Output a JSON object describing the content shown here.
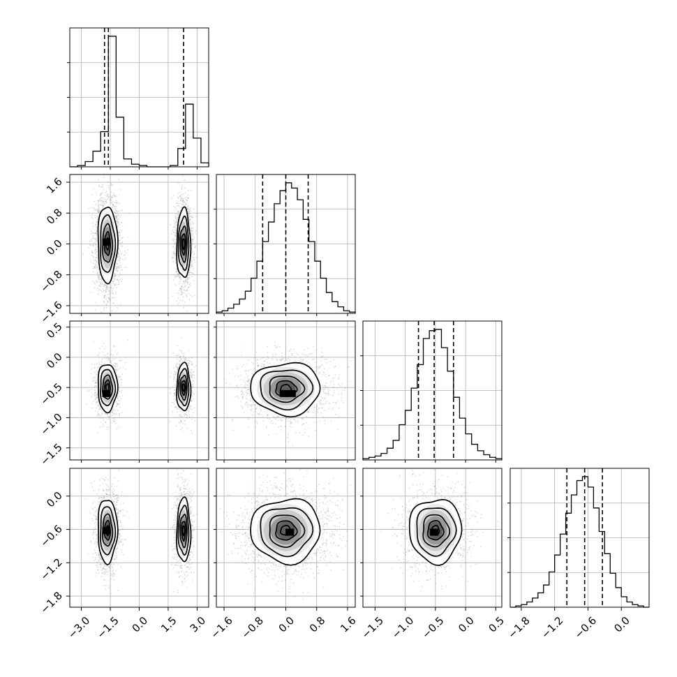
{
  "colors": {
    "line": "#000000",
    "grid": "#b0b0b0",
    "scatter": "#9a9a9a",
    "background": "#ffffff"
  },
  "chart_data": {
    "type": "corner",
    "grid": true,
    "n_params": 4,
    "params": [
      {
        "index": 0,
        "range": [
          -3.6,
          3.6
        ],
        "ticks": [
          -3.0,
          -1.5,
          0.0,
          1.5,
          3.0
        ],
        "tick_labels": [
          "−3.0",
          "−1.5",
          "0.0",
          "1.5",
          "3.0"
        ]
      },
      {
        "index": 1,
        "range": [
          -1.8,
          1.8
        ],
        "ticks": [
          -1.6,
          -0.8,
          0.0,
          0.8,
          1.6
        ],
        "tick_labels": [
          "−1.6",
          "−0.8",
          "0.0",
          "0.8",
          "1.6"
        ]
      },
      {
        "index": 2,
        "range": [
          -1.7,
          0.6
        ],
        "ticks": [
          -1.5,
          -1.0,
          -0.5,
          0.0,
          0.5
        ],
        "tick_labels": [
          "−1.5",
          "−1.0",
          "−0.5",
          "0.0",
          "0.5"
        ]
      },
      {
        "index": 3,
        "range": [
          -2.0,
          0.5
        ],
        "ticks": [
          -1.8,
          -1.2,
          -0.6,
          0.0
        ],
        "tick_labels": [
          "−1.8",
          "−1.2",
          "−0.6",
          "0.0"
        ]
      }
    ],
    "marginals": [
      {
        "param": 0,
        "edges": [
          -3.6,
          -3.2,
          -2.8,
          -2.4,
          -2.0,
          -1.6,
          -1.2,
          -0.8,
          -0.4,
          0.0,
          0.4,
          0.8,
          1.2,
          1.6,
          2.0,
          2.4,
          2.8,
          3.2,
          3.6
        ],
        "counts": [
          0,
          0.01,
          0.04,
          0.12,
          0.27,
          1.0,
          0.38,
          0.06,
          0.02,
          0.01,
          0,
          0,
          0,
          0.01,
          0.14,
          0.48,
          0.22,
          0.03
        ],
        "quantiles": [
          -1.8,
          -1.6,
          2.3
        ]
      },
      {
        "param": 1,
        "edges": [
          -1.8,
          -1.65,
          -1.5,
          -1.35,
          -1.2,
          -1.05,
          -0.9,
          -0.75,
          -0.6,
          -0.45,
          -0.3,
          -0.15,
          0.0,
          0.15,
          0.3,
          0.45,
          0.6,
          0.75,
          0.9,
          1.05,
          1.2,
          1.35,
          1.5,
          1.65,
          1.8
        ],
        "counts": [
          0.01,
          0.02,
          0.04,
          0.07,
          0.11,
          0.17,
          0.27,
          0.4,
          0.55,
          0.7,
          0.84,
          0.94,
          1.0,
          0.96,
          0.87,
          0.72,
          0.55,
          0.4,
          0.27,
          0.16,
          0.09,
          0.05,
          0.02,
          0.01
        ],
        "quantiles": [
          -0.6,
          0.0,
          0.58
        ]
      },
      {
        "param": 2,
        "edges": [
          -1.7,
          -1.6,
          -1.5,
          -1.4,
          -1.3,
          -1.2,
          -1.1,
          -1.0,
          -0.9,
          -0.8,
          -0.7,
          -0.6,
          -0.5,
          -0.4,
          -0.3,
          -0.2,
          -0.1,
          0.0,
          0.1,
          0.2,
          0.3,
          0.4,
          0.5,
          0.6
        ],
        "counts": [
          0.01,
          0.02,
          0.03,
          0.05,
          0.09,
          0.15,
          0.27,
          0.38,
          0.55,
          0.73,
          0.93,
          0.99,
          1.0,
          0.86,
          0.68,
          0.48,
          0.32,
          0.2,
          0.12,
          0.07,
          0.04,
          0.02,
          0.01
        ],
        "quantiles": [
          -0.78,
          -0.52,
          -0.2
        ]
      },
      {
        "param": 3,
        "edges": [
          -2.0,
          -1.9,
          -1.8,
          -1.7,
          -1.6,
          -1.5,
          -1.4,
          -1.3,
          -1.2,
          -1.1,
          -1.0,
          -0.9,
          -0.8,
          -0.7,
          -0.6,
          -0.5,
          -0.4,
          -0.3,
          -0.2,
          -0.1,
          0.0,
          0.1,
          0.2,
          0.3,
          0.4,
          0.5
        ],
        "counts": [
          0,
          0.01,
          0.02,
          0.04,
          0.07,
          0.11,
          0.17,
          0.27,
          0.4,
          0.56,
          0.72,
          0.86,
          0.97,
          1.0,
          0.92,
          0.76,
          0.58,
          0.41,
          0.26,
          0.15,
          0.08,
          0.04,
          0.02,
          0.01,
          0
        ],
        "quantiles": [
          -0.98,
          -0.66,
          -0.34
        ]
      }
    ],
    "joints": [
      {
        "x": 0,
        "y": 1,
        "centers": [
          [
            -1.65,
            0.0,
            0.28,
            0.55
          ],
          [
            2.3,
            0.0,
            0.2,
            0.5
          ]
        ],
        "peak_bins": [
          [
            -1.7,
            0.05
          ]
        ]
      },
      {
        "x": 0,
        "y": 2,
        "centers": [
          [
            -1.65,
            -0.5,
            0.28,
            0.22
          ],
          [
            2.3,
            -0.5,
            0.2,
            0.22
          ]
        ],
        "peak_bins": [
          [
            -1.7,
            -0.6
          ]
        ]
      },
      {
        "x": 0,
        "y": 3,
        "centers": [
          [
            -1.65,
            -0.62,
            0.28,
            0.32
          ],
          [
            2.3,
            -0.62,
            0.2,
            0.32
          ]
        ],
        "peak_bins": [
          [
            -1.7,
            -0.62
          ]
        ]
      },
      {
        "x": 1,
        "y": 2,
        "centers": [
          [
            0.0,
            -0.52,
            0.5,
            0.24
          ]
        ],
        "peak_bins": [
          [
            -0.05,
            -0.6
          ],
          [
            0.15,
            -0.6
          ]
        ]
      },
      {
        "x": 1,
        "y": 3,
        "centers": [
          [
            0.0,
            -0.62,
            0.5,
            0.32
          ]
        ],
        "peak_bins": [
          [
            0.1,
            -0.65
          ]
        ]
      },
      {
        "x": 2,
        "y": 3,
        "centers": [
          [
            -0.5,
            -0.62,
            0.24,
            0.32
          ]
        ],
        "peak_bins": [
          [
            -0.52,
            -0.65
          ]
        ]
      }
    ],
    "contour_levels": [
      0.3,
      0.6,
      1.0,
      1.5,
      2.0
    ]
  }
}
